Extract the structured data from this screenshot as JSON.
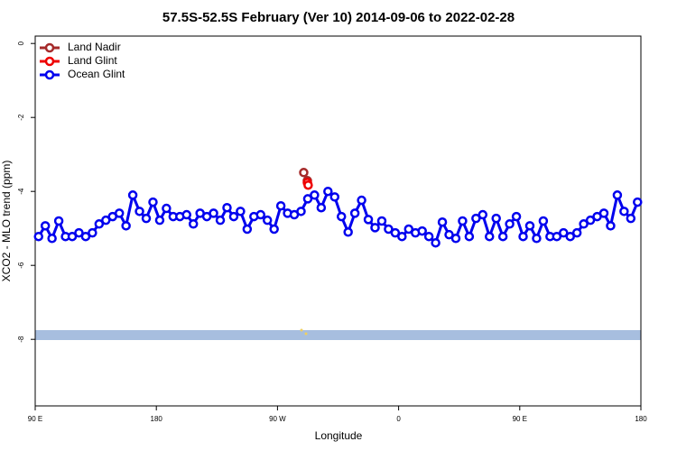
{
  "chart_data": {
    "type": "line",
    "title": "57.5S-52.5S February (Ver 10)   2014-09-06 to 2022-02-28",
    "x_label": "Longitude",
    "y_label": "XCO2 - MLO trend (ppm)",
    "xlim": [
      90,
      540
    ],
    "xticks": [
      {
        "value": 90,
        "label": "90 E"
      },
      180,
      {
        "value": 270,
        "label": "90 W"
      },
      {
        "value": 360,
        "label": "0"
      },
      {
        "value": 450,
        "label": "90 E"
      },
      {
        "value": 540,
        "label": "180"
      }
    ],
    "ylim": [
      -9.8,
      0.2
    ],
    "yticks": [
      0,
      -2,
      -4,
      -6,
      -8
    ],
    "legend": "upper left",
    "series": [
      {
        "name": "Land Nadir",
        "color": "#a52a2a",
        "x": [
          289.5,
          292.2
        ],
        "values": [
          -3.49,
          -3.71
        ]
      },
      {
        "name": "Land Glint",
        "color": "#ee0000",
        "x": [
          292.2,
          292.8
        ],
        "values": [
          -3.76,
          -3.83
        ]
      },
      {
        "name": "Ocean Glint",
        "color": "#0000ee",
        "x": [
          92.5,
          97.5,
          102.5,
          107.5,
          112.5,
          117.5,
          122.5,
          127.5,
          132.5,
          137.5,
          142.5,
          147.5,
          152.5,
          157.5,
          162.5,
          167.5,
          172.5,
          177.5,
          182.5,
          187.5,
          192.5,
          197.5,
          202.5,
          207.5,
          212.5,
          217.5,
          222.5,
          227.5,
          232.5,
          237.5,
          242.5,
          247.5,
          252.5,
          257.5,
          262.5,
          267.5,
          272.5,
          277.5,
          282.5,
          287.5,
          292.5,
          297.5,
          302.5,
          307.5,
          312.5,
          317.5,
          322.5,
          327.5,
          332.5,
          337.5,
          342.5,
          347.5,
          352.5,
          357.5,
          362.5,
          367.5,
          372.5,
          377.5,
          382.5,
          387.5,
          392.5,
          397.5,
          402.5,
          407.5,
          412.5,
          417.5,
          422.5,
          427.5,
          432.5,
          437.5,
          442.5,
          447.5,
          452.5,
          457.5,
          462.5,
          467.5,
          472.5,
          477.5,
          482.5,
          487.5,
          492.5,
          497.5,
          502.5,
          507.5,
          512.5,
          517.5,
          522.5,
          527.5,
          532.5,
          537.5
        ],
        "values": [
          -5.22,
          -4.93,
          -5.27,
          -4.8,
          -5.22,
          -5.22,
          -5.12,
          -5.22,
          -5.12,
          -4.88,
          -4.78,
          -4.68,
          -4.59,
          -4.93,
          -4.1,
          -4.54,
          -4.73,
          -4.29,
          -4.78,
          -4.46,
          -4.68,
          -4.68,
          -4.63,
          -4.88,
          -4.59,
          -4.68,
          -4.59,
          -4.78,
          -4.44,
          -4.68,
          -4.54,
          -5.02,
          -4.68,
          -4.63,
          -4.78,
          -5.02,
          -4.39,
          -4.59,
          -4.63,
          -4.54,
          -4.2,
          -4.1,
          -4.44,
          -4.0,
          -4.15,
          -4.68,
          -5.1,
          -4.59,
          -4.24,
          -4.76,
          -4.98,
          -4.8,
          -5.02,
          -5.12,
          -5.22,
          -5.02,
          -5.12,
          -5.07,
          -5.22,
          -5.39,
          -4.83,
          -5.17,
          -5.27,
          -4.8,
          -5.22,
          -4.73,
          -4.63,
          -5.22,
          -4.73,
          -5.22,
          -4.88,
          -4.68,
          -5.22,
          -4.93,
          -5.27,
          -4.8,
          -5.22,
          -5.22,
          -5.12,
          -5.22,
          -5.12,
          -4.88,
          -4.78,
          -4.68,
          -4.59,
          -4.93,
          -4.1,
          -4.54,
          -4.73,
          -4.29
        ]
      }
    ]
  }
}
